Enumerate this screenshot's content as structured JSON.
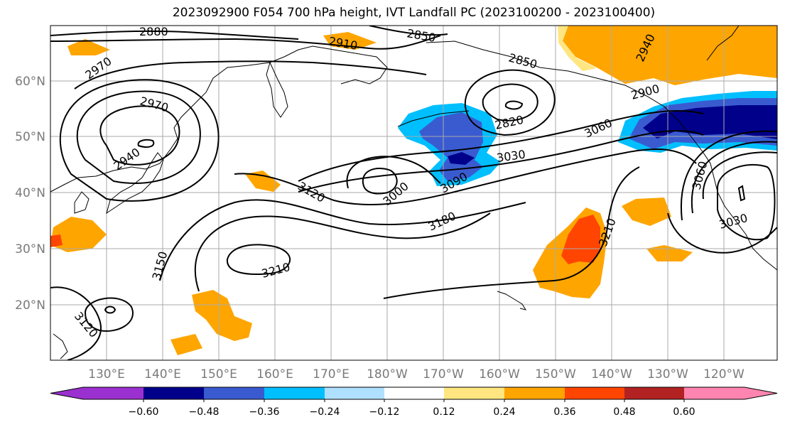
{
  "title": "2023092900 F054 700 hPa height, IVT Landfall PC (2023100200 - 2023100400)",
  "map": {
    "lon_labels": [
      "130°E",
      "140°E",
      "150°E",
      "160°E",
      "170°E",
      "180°W",
      "170°W",
      "160°W",
      "150°W",
      "140°W",
      "130°W",
      "120°W"
    ],
    "lat_labels": [
      "60°N",
      "50°N",
      "40°N",
      "30°N",
      "20°N"
    ],
    "contour_labels": [
      "2880",
      "2850",
      "2910",
      "2970",
      "2850",
      "2970",
      "2900",
      "2940",
      "2820",
      "3060",
      "2940",
      "3030",
      "3000",
      "3120",
      "3090",
      "3060",
      "3180",
      "3210",
      "3030",
      "3150",
      "3210",
      "3120"
    ]
  },
  "colorbar": {
    "ticks": [
      "−0.60",
      "−0.48",
      "−0.36",
      "−0.24",
      "−0.12",
      "0.12",
      "0.24",
      "0.36",
      "0.48",
      "0.60"
    ],
    "colors": [
      "#9b30d0",
      "#00008b",
      "#3a5bd0",
      "#00bfff",
      "#b0e0ff",
      "#ffffff",
      "#ffe680",
      "#ffa500",
      "#ff4500",
      "#b22222",
      "#ff85b0"
    ]
  }
}
